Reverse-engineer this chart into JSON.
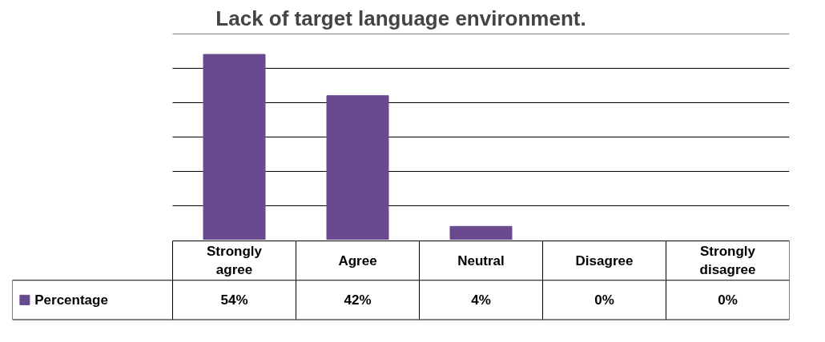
{
  "chart_data": {
    "type": "bar",
    "title": "Lack of target language environment.",
    "categories": [
      "Strongly agree",
      "Agree",
      "Neutral",
      "Disagree",
      "Strongly disagree"
    ],
    "series": [
      {
        "name": "Percentage",
        "color": "#6a4a8e",
        "values": [
          54,
          42,
          4,
          0,
          0
        ],
        "value_labels": [
          "54%",
          "42%",
          "4%",
          "0%",
          "0%"
        ]
      }
    ],
    "grid": "y",
    "legend": "bottom left"
  }
}
